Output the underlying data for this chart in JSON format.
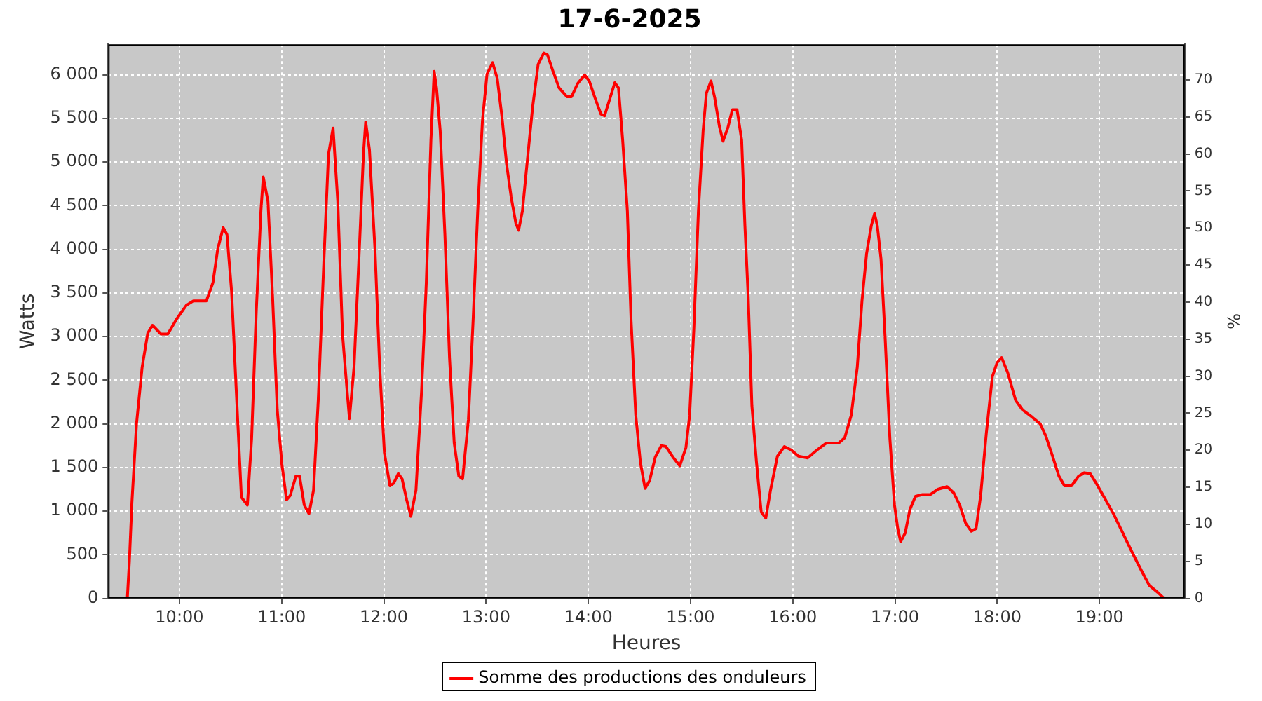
{
  "chart_data": {
    "type": "line",
    "title": "17-6-2025",
    "xlabel": "Heures",
    "ylabel": "Watts",
    "y2label": "%",
    "xlim": [
      9.303,
      19.834
    ],
    "xticks": [
      {
        "value": 10,
        "label": "10:00"
      },
      {
        "value": 11,
        "label": "11:00"
      },
      {
        "value": 12,
        "label": "12:00"
      },
      {
        "value": 13,
        "label": "13:00"
      },
      {
        "value": 14,
        "label": "14:00"
      },
      {
        "value": 15,
        "label": "15:00"
      },
      {
        "value": 16,
        "label": "16:00"
      },
      {
        "value": 17,
        "label": "17:00"
      },
      {
        "value": 18,
        "label": "18:00"
      },
      {
        "value": 19,
        "label": "19:00"
      }
    ],
    "ylim": [
      0,
      6350
    ],
    "yticks": [
      0,
      500,
      {
        "value": 1000,
        "label": "1 000"
      },
      {
        "value": 1500,
        "label": "1 500"
      },
      {
        "value": 2000,
        "label": "2 000"
      },
      {
        "value": 2500,
        "label": "2 500"
      },
      {
        "value": 3000,
        "label": "3 000"
      },
      {
        "value": 3500,
        "label": "3 500"
      },
      {
        "value": 4000,
        "label": "4 000"
      },
      {
        "value": 4500,
        "label": "4 500"
      },
      {
        "value": 5000,
        "label": "5 000"
      },
      {
        "value": 5500,
        "label": "5 500"
      },
      {
        "value": 6000,
        "label": "6 000"
      }
    ],
    "y2lim": [
      0,
      74.8
    ],
    "y2ticks": [
      0,
      5,
      10,
      15,
      20,
      25,
      30,
      35,
      40,
      45,
      50,
      55,
      60,
      65,
      70
    ],
    "grid": true,
    "legend": "bottom",
    "marker": "none",
    "line_style": "solid",
    "series": [
      {
        "name": "Somme des productions des onduleurs",
        "color": "#ff0000",
        "x": [
          9.49,
          9.51,
          9.535,
          9.58,
          9.635,
          9.69,
          9.736,
          9.818,
          9.886,
          9.977,
          10.068,
          10.137,
          10.264,
          10.328,
          10.374,
          10.428,
          10.465,
          10.51,
          10.556,
          10.606,
          10.665,
          10.706,
          10.752,
          10.797,
          10.82,
          10.866,
          10.911,
          10.957,
          11.002,
          11.048,
          11.084,
          11.139,
          11.175,
          11.221,
          11.267,
          11.312,
          11.358,
          11.412,
          11.458,
          11.503,
          11.549,
          11.595,
          11.64,
          11.663,
          11.708,
          11.754,
          11.8,
          11.822,
          11.859,
          11.913,
          11.959,
          12.005,
          12.059,
          12.096,
          12.141,
          12.178,
          12.223,
          12.264,
          12.314,
          12.369,
          12.415,
          12.46,
          12.492,
          12.515,
          12.551,
          12.597,
          12.642,
          12.688,
          12.733,
          12.77,
          12.827,
          12.873,
          12.918,
          12.964,
          13.009,
          13.064,
          13.109,
          13.155,
          13.2,
          13.245,
          13.291,
          13.318,
          13.355,
          13.4,
          13.455,
          13.509,
          13.564,
          13.6,
          13.655,
          13.714,
          13.791,
          13.836,
          13.895,
          13.964,
          14.009,
          14.064,
          14.123,
          14.159,
          14.214,
          14.259,
          14.295,
          14.336,
          14.382,
          14.418,
          14.464,
          14.509,
          14.555,
          14.6,
          14.655,
          14.714,
          14.759,
          14.827,
          14.895,
          14.955,
          14.991,
          15.032,
          15.077,
          15.123,
          15.155,
          15.2,
          15.236,
          15.282,
          15.318,
          15.364,
          15.409,
          15.455,
          15.5,
          15.532,
          15.564,
          15.6,
          15.645,
          15.691,
          15.736,
          15.782,
          15.85,
          15.918,
          15.986,
          16.055,
          16.145,
          16.236,
          16.327,
          16.449,
          16.508,
          16.572,
          16.631,
          16.677,
          16.722,
          16.768,
          16.8,
          16.827,
          16.863,
          16.904,
          16.95,
          16.995,
          17.027,
          17.055,
          17.1,
          17.146,
          17.2,
          17.269,
          17.346,
          17.419,
          17.51,
          17.574,
          17.633,
          17.692,
          17.747,
          17.793,
          17.838,
          17.893,
          17.952,
          17.998,
          18.043,
          18.102,
          18.18,
          18.248,
          18.339,
          18.421,
          18.476,
          18.544,
          18.604,
          18.658,
          18.727,
          18.795,
          18.85,
          18.909,
          18.968,
          19.046,
          19.137,
          19.228,
          19.319,
          19.41,
          19.487,
          19.569,
          19.633
        ],
        "values": [
          0,
          420,
          1100,
          2000,
          2650,
          3040,
          3130,
          3030,
          3030,
          3210,
          3360,
          3410,
          3410,
          3620,
          4000,
          4250,
          4170,
          3520,
          2380,
          1160,
          1070,
          1830,
          3300,
          4440,
          4830,
          4550,
          3460,
          2160,
          1540,
          1130,
          1180,
          1400,
          1400,
          1070,
          970,
          1240,
          2270,
          3840,
          5090,
          5390,
          4550,
          3030,
          2380,
          2060,
          2650,
          3840,
          5090,
          5460,
          5140,
          4000,
          2650,
          1670,
          1290,
          1320,
          1430,
          1370,
          1130,
          940,
          1240,
          2380,
          3620,
          5250,
          6040,
          5850,
          5360,
          4170,
          2760,
          1780,
          1400,
          1370,
          2050,
          3190,
          4440,
          5470,
          6010,
          6140,
          5960,
          5520,
          4980,
          4600,
          4300,
          4220,
          4440,
          4980,
          5630,
          6120,
          6250,
          6230,
          6040,
          5850,
          5750,
          5750,
          5900,
          6000,
          5930,
          5740,
          5550,
          5530,
          5740,
          5910,
          5850,
          5250,
          4440,
          3190,
          2100,
          1560,
          1260,
          1350,
          1620,
          1750,
          1740,
          1620,
          1520,
          1730,
          2100,
          3080,
          4440,
          5360,
          5790,
          5930,
          5740,
          5410,
          5240,
          5390,
          5600,
          5600,
          5250,
          4270,
          3460,
          2210,
          1560,
          990,
          920,
          1240,
          1630,
          1740,
          1700,
          1630,
          1610,
          1700,
          1780,
          1780,
          1840,
          2100,
          2650,
          3410,
          3950,
          4270,
          4410,
          4270,
          3890,
          2970,
          1830,
          1070,
          800,
          650,
          750,
          1020,
          1170,
          1190,
          1190,
          1250,
          1280,
          1210,
          1070,
          860,
          770,
          800,
          1180,
          1890,
          2540,
          2700,
          2760,
          2590,
          2270,
          2160,
          2080,
          2000,
          1860,
          1620,
          1400,
          1290,
          1290,
          1400,
          1440,
          1430,
          1320,
          1160,
          970,
          750,
          530,
          320,
          150,
          70,
          0
        ]
      }
    ]
  }
}
